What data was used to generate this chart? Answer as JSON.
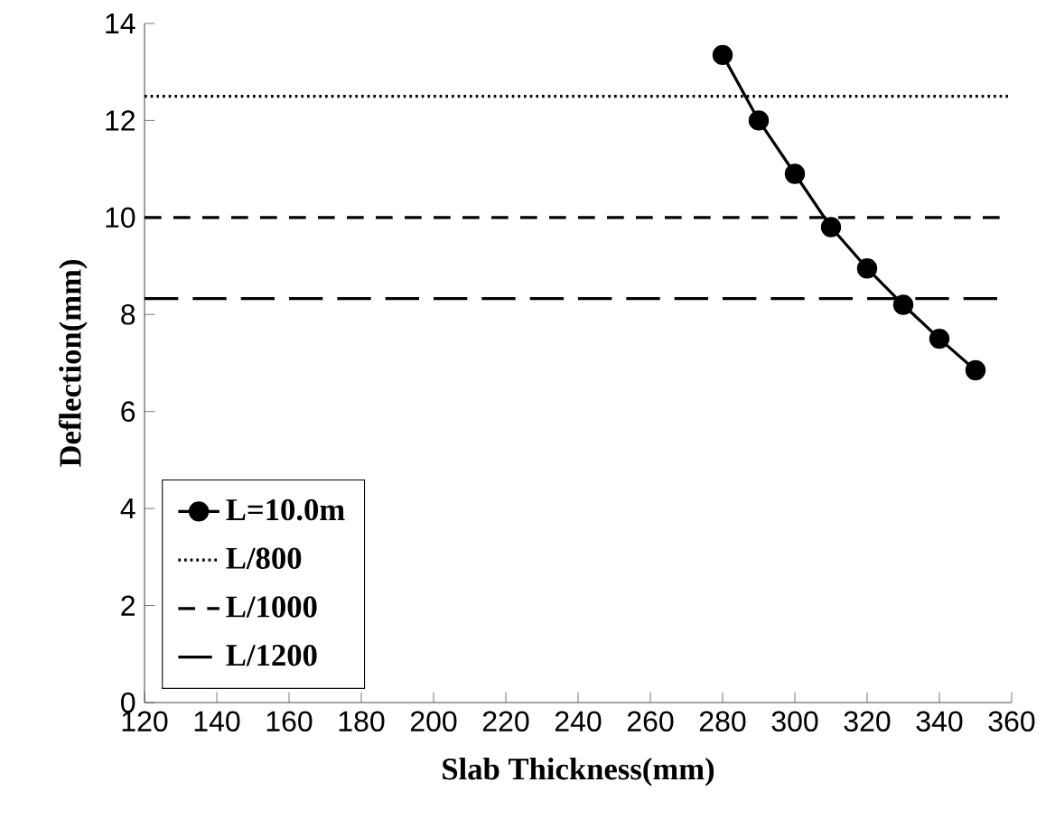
{
  "chart_data": {
    "type": "line",
    "xlabel": "Slab Thickness(mm)",
    "ylabel": "Deflection(mm)",
    "xlim": [
      120,
      360
    ],
    "xticks": [
      120,
      140,
      160,
      180,
      200,
      220,
      240,
      260,
      280,
      300,
      320,
      340,
      360
    ],
    "ylim": [
      0,
      14
    ],
    "yticks": [
      0,
      2,
      4,
      6,
      8,
      10,
      12,
      14
    ],
    "grid": false,
    "legend": "bottom left",
    "series": [
      {
        "name": "L=10.0m",
        "color": "#000000",
        "marker": "circle",
        "line_style": "solid",
        "x": [
          280,
          290,
          300,
          310,
          320,
          330,
          340,
          350
        ],
        "values": [
          13.35,
          12.0,
          10.9,
          9.8,
          8.95,
          8.2,
          7.5,
          6.85
        ]
      },
      {
        "name": "L/800",
        "color": "#000000",
        "marker": "none",
        "line_style": "dotted",
        "x": [
          120,
          360
        ],
        "values": [
          12.5,
          12.5
        ]
      },
      {
        "name": "L/1000",
        "color": "#000000",
        "marker": "none",
        "line_style": "dashed",
        "x": [
          120,
          360
        ],
        "values": [
          10,
          10
        ]
      },
      {
        "name": "L/1200",
        "color": "#000000",
        "marker": "none",
        "line_style": "dashed",
        "x": [
          120,
          360
        ],
        "values": [
          8.33,
          8.33
        ]
      }
    ]
  }
}
